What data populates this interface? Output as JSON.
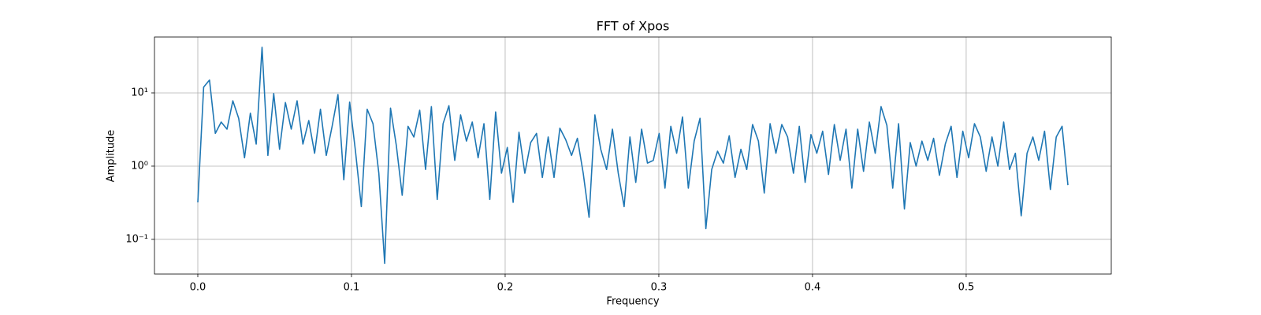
{
  "chart_data": {
    "type": "line",
    "title": "FFT of Xpos",
    "x_label": "Frequency",
    "y_label": "Amplitude",
    "x": [
      0,
      0.0038,
      0.0076,
      0.0114,
      0.0152,
      0.019,
      0.0228,
      0.0266,
      0.0304,
      0.0342,
      0.038,
      0.0418,
      0.0456,
      0.0494,
      0.0532,
      0.057,
      0.0608,
      0.0646,
      0.0684,
      0.0722,
      0.076,
      0.0798,
      0.0836,
      0.0874,
      0.0912,
      0.095,
      0.0988,
      0.1026,
      0.1064,
      0.1102,
      0.114,
      0.1178,
      0.1216,
      0.1254,
      0.1292,
      0.133,
      0.1368,
      0.1406,
      0.1444,
      0.1482,
      0.152,
      0.1558,
      0.1596,
      0.1634,
      0.1672,
      0.171,
      0.1748,
      0.1786,
      0.1824,
      0.1862,
      0.19,
      0.1938,
      0.1976,
      0.2014,
      0.2052,
      0.209,
      0.2128,
      0.2166,
      0.2204,
      0.2242,
      0.228,
      0.2318,
      0.2356,
      0.2394,
      0.2432,
      0.247,
      0.2508,
      0.2546,
      0.2584,
      0.2622,
      0.266,
      0.2698,
      0.2736,
      0.2774,
      0.2812,
      0.285,
      0.2888,
      0.2926,
      0.2964,
      0.3002,
      0.304,
      0.3078,
      0.3116,
      0.3154,
      0.3192,
      0.323,
      0.3268,
      0.3306,
      0.3344,
      0.3382,
      0.342,
      0.3458,
      0.3496,
      0.3534,
      0.3572,
      0.361,
      0.3648,
      0.3686,
      0.3724,
      0.3762,
      0.38,
      0.3838,
      0.3876,
      0.3914,
      0.3952,
      0.399,
      0.4028,
      0.4066,
      0.4104,
      0.4142,
      0.418,
      0.4218,
      0.4256,
      0.4294,
      0.4332,
      0.437,
      0.4408,
      0.4446,
      0.4484,
      0.4522,
      0.456,
      0.4598,
      0.4636,
      0.4674,
      0.4712,
      0.475,
      0.4788,
      0.4826,
      0.4864,
      0.4902,
      0.494,
      0.4978,
      0.5016,
      0.5054,
      0.5092,
      0.513,
      0.5168,
      0.5206,
      0.5244,
      0.5282,
      0.532,
      0.5358,
      0.5396,
      0.5434,
      0.5472,
      0.551,
      0.5548,
      0.5586,
      0.5624,
      0.5662
    ],
    "series": [
      {
        "color": "#1f77b4",
        "values": [
          0.32,
          12,
          15,
          2.8,
          4,
          3.2,
          7.8,
          4.5,
          1.3,
          5.3,
          2,
          42,
          1.4,
          9.8,
          1.7,
          7.4,
          3.2,
          7.8,
          2,
          4.2,
          1.5,
          6,
          1.4,
          3.5,
          9.5,
          0.65,
          7.5,
          1.6,
          0.28,
          6,
          3.8,
          0.8,
          0.047,
          6.2,
          1.9,
          0.4,
          3.5,
          2.5,
          5.8,
          0.9,
          6.5,
          0.35,
          3.8,
          6.7,
          1.2,
          5,
          2.2,
          4,
          1.3,
          3.8,
          0.35,
          5.5,
          0.8,
          1.8,
          0.32,
          2.9,
          0.8,
          2.1,
          2.8,
          0.7,
          2.5,
          0.7,
          3.3,
          2.3,
          1.4,
          2.4,
          0.8,
          0.2,
          5,
          1.7,
          0.9,
          3.2,
          0.8,
          0.28,
          2.5,
          0.6,
          3.2,
          1.1,
          1.2,
          2.8,
          0.5,
          3.5,
          1.5,
          4.7,
          0.5,
          2.2,
          4.5,
          0.14,
          0.9,
          1.6,
          1.1,
          2.6,
          0.7,
          1.7,
          0.9,
          3.7,
          2.2,
          0.43,
          3.8,
          1.5,
          3.7,
          2.5,
          0.8,
          3.5,
          0.6,
          2.7,
          1.5,
          3,
          0.77,
          3.7,
          1.2,
          3.2,
          0.5,
          3.2,
          0.85,
          4,
          1.5,
          6.5,
          3.6,
          0.5,
          3.8,
          0.26,
          2.1,
          1,
          2.2,
          1.2,
          2.4,
          0.75,
          2,
          3.5,
          0.7,
          3,
          1.3,
          3.8,
          2.5,
          0.85,
          2.5,
          1,
          4,
          0.9,
          1.5,
          0.21,
          1.5,
          2.5,
          1.2,
          3,
          0.48,
          2.5,
          3.5,
          0.55
        ]
      }
    ],
    "xlim": [
      -0.0282,
      0.5944
    ],
    "ylim": [
      0.0336,
      58
    ],
    "y_scale": "log",
    "grid": true,
    "xticks": [
      {
        "value": 0,
        "label": "0.0"
      },
      0.1,
      0.2,
      0.3,
      0.4,
      0.5
    ],
    "yticks": [
      {
        "value": 0.1,
        "label": "10⁻¹"
      },
      {
        "value": 1,
        "label": "10⁰"
      },
      {
        "value": 10,
        "label": "10¹"
      }
    ]
  }
}
